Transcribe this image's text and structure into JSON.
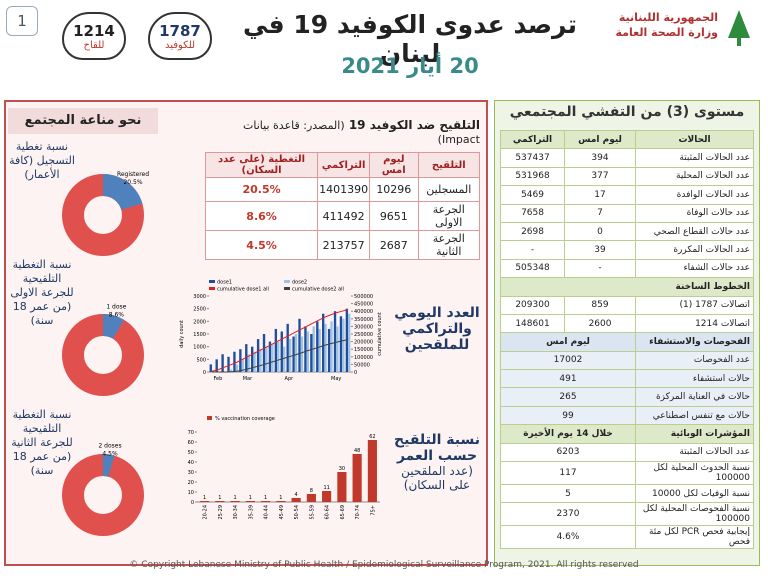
{
  "header": {
    "page_number": "1",
    "title": "ترصد عدوى الكوفيد 19 في لبنان",
    "date": "20 أيار 2021",
    "hotlines": [
      {
        "number": "1214",
        "label": "للقاح"
      },
      {
        "number": "1787",
        "label": "للكوفيد"
      }
    ],
    "ministry": [
      "الجمهورية اللبنانية",
      "وزارة الصحة العامة"
    ]
  },
  "immunity": {
    "title": "نحو مناعة المجتمع"
  },
  "vaccination_table": {
    "title": "التلقيح ضد الكوفيد 19",
    "source": "(المصدر: قاعدة بيانات Impact)",
    "columns": [
      "التلقيح",
      "ليوم امس",
      "التراكمي",
      "التغطية (على عدد السكان)"
    ],
    "rows": [
      [
        "المسجلين",
        "10296",
        "1401390",
        "20.5%"
      ],
      [
        "الجرعة الاولى",
        "9651",
        "411492",
        "8.6%"
      ],
      [
        "الجرعة الثانية",
        "2687",
        "213757",
        "4.5%"
      ]
    ]
  },
  "daily_caption": "العدد اليومي والتراكمي للملقحين",
  "age_caption": {
    "title": "نسبة التلقيح حسب العمر",
    "subtitle": "(عدد الملقحين على السكان)"
  },
  "chart_data": [
    {
      "type": "pie",
      "title": "نسبة تغطية التسجيل (كافة الأعمار)",
      "categories": [
        "Registered"
      ],
      "values": [
        20.5
      ],
      "value_labels": [
        "20.5%"
      ],
      "colors": [
        "#4f81bd"
      ],
      "rest_color": "#e0504d"
    },
    {
      "type": "pie",
      "title": "نسبة التغطية التلقيحية للجرعة الاولى (من عمر 18 سنة)",
      "categories": [
        "1 dose"
      ],
      "values": [
        8.6
      ],
      "value_labels": [
        "8.6%"
      ],
      "colors": [
        "#4f81bd"
      ],
      "rest_color": "#e0504d"
    },
    {
      "type": "pie",
      "title": "نسبة التغطية التلقيحية للجرعة الثانية (من عمر 18 سنة)",
      "categories": [
        "2 doses"
      ],
      "values": [
        4.5
      ],
      "value_labels": [
        "4.5%"
      ],
      "colors": [
        "#4f81bd"
      ],
      "rest_color": "#e0504d"
    },
    {
      "type": "combo",
      "ylabel": "daily count",
      "y2label": "cumulative count",
      "categories": [
        null,
        "Feb",
        null,
        null,
        null,
        null,
        "Mar",
        null,
        null,
        null,
        null,
        null,
        null,
        "Apr",
        null,
        null,
        null,
        null,
        null,
        null,
        null,
        "May",
        null,
        null
      ],
      "series": [
        {
          "name": "dose1",
          "color": "#1f4e9c",
          "mark": "bar",
          "values": [
            300,
            500,
            700,
            600,
            800,
            900,
            1100,
            1000,
            1300,
            1500,
            1200,
            1700,
            1600,
            1900,
            1400,
            2100,
            1800,
            1500,
            2000,
            2300,
            1700,
            2400,
            2200,
            2500
          ]
        },
        {
          "name": "dose2",
          "color": "#9dc3e6",
          "mark": "bar",
          "values": [
            0,
            0,
            0,
            100,
            300,
            500,
            700,
            800,
            900,
            1000,
            1100,
            1200,
            1000,
            1300,
            1500,
            1400,
            1600,
            1800,
            1700,
            1900,
            2000,
            1800,
            2100,
            2300
          ]
        },
        {
          "name": "cumulative dose1 all",
          "color": "#e02020",
          "mark": "line",
          "axis": "y2",
          "values": [
            5000,
            15000,
            30000,
            45000,
            60000,
            80000,
            100000,
            120000,
            140000,
            160000,
            180000,
            200000,
            220000,
            240000,
            260000,
            280000,
            300000,
            320000,
            340000,
            360000,
            375000,
            390000,
            400000,
            411000
          ]
        },
        {
          "name": "cumulative dose2 all",
          "color": "#404040",
          "mark": "line",
          "axis": "y2",
          "values": [
            0,
            0,
            0,
            1000,
            4000,
            10000,
            20000,
            30000,
            40000,
            52000,
            64000,
            76000,
            88000,
            100000,
            112000,
            124000,
            138000,
            150000,
            162000,
            175000,
            186000,
            196000,
            205000,
            213000
          ]
        }
      ],
      "ylim": [
        0,
        3000
      ],
      "yticks": [
        0,
        500,
        1000,
        1500,
        2000,
        2500,
        3000
      ],
      "y2lim": [
        0,
        500000
      ],
      "y2ticks": [
        0,
        50000,
        100000,
        150000,
        200000,
        250000,
        300000,
        350000,
        400000,
        450000,
        500000
      ]
    },
    {
      "type": "bar",
      "legend": "% vaccination coverage",
      "color": "#c0392b",
      "categories": [
        "20-24",
        "25-29",
        "30-34",
        "35-39",
        "40-44",
        "45-49",
        "50-54",
        "55-59",
        "60-64",
        "65-69",
        "70-74",
        "75+"
      ],
      "values": [
        1,
        1,
        1,
        1,
        1,
        1,
        4,
        8,
        11,
        30,
        48,
        62
      ],
      "ylim": [
        0,
        70
      ],
      "yticks": [
        0,
        10,
        20,
        30,
        40,
        50,
        60,
        70
      ]
    }
  ],
  "outbreak": {
    "title": "مستوى (3) من التفشي المجتمعي",
    "cases": {
      "columns": [
        "الحالات",
        "ليوم امس",
        "التراكمي"
      ],
      "rows": [
        [
          "عدد الحالات المثبتة",
          "394",
          "537437"
        ],
        [
          "عدد الحالات المحلية",
          "377",
          "531968"
        ],
        [
          "عدد الحالات الوافدة",
          "17",
          "5469"
        ],
        [
          "عدد حالات الوفاة",
          "7",
          "7658"
        ],
        [
          "عدد حالات القطاع الصحي",
          "0",
          "2698"
        ],
        [
          "عدد الحالات المكررة",
          "39",
          "-"
        ],
        [
          "عدد حالات الشفاء",
          "-",
          "505348"
        ]
      ]
    },
    "hotlines": {
      "title": "الخطوط الساخنة",
      "rows": [
        [
          "اتصالات 1787 (1)",
          "859",
          "209300"
        ],
        [
          "اتصالات 1214",
          "2600",
          "148601"
        ]
      ]
    },
    "tests": {
      "columns": [
        "الفحوصات والاستشفاء",
        "ليوم امس"
      ],
      "rows": [
        [
          "عدد الفحوصات",
          "17002"
        ],
        [
          "حالات استشفاء",
          "491"
        ],
        [
          "حالات في العناية المركزة",
          "265"
        ],
        [
          "حالات مع تنفس اصطناعي",
          "99"
        ]
      ]
    },
    "indicators": {
      "columns": [
        "المؤشرات الوبائية",
        "خلال 14 يوم الأخيرة"
      ],
      "rows": [
        [
          "عدد الحالات المثبتة",
          "6203"
        ],
        [
          "نسبة الحدوث المحلية لكل 100000",
          "117"
        ],
        [
          "نسبة الوفيات لكل 10000",
          "5"
        ],
        [
          "نسبة الفحوصات المحلية لكل 100000",
          "2370"
        ],
        [
          "إيجابية فحص PCR لكل مئة فحص",
          "4.6%"
        ]
      ]
    }
  },
  "footer": "© Copyright Lebanese Ministry of Public Health / Epidemiological Surveillance Program, 2021. All rights reserved"
}
